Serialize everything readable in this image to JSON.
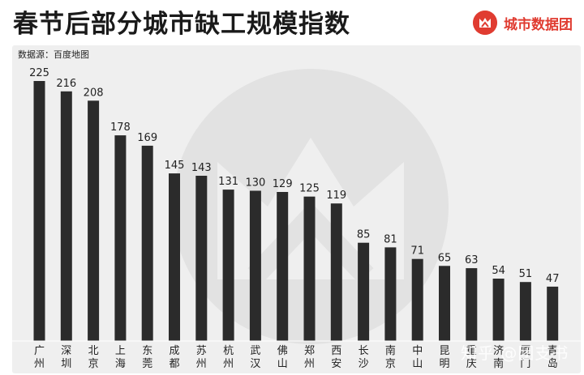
{
  "header": {
    "title": "春节后部分城市缺工规模指数",
    "brand": "城市数据团"
  },
  "source": "数据源：百度地图",
  "watermark": "知乎 @团支书",
  "colors": {
    "bar": "#2b2b2b",
    "panel": "#efefef",
    "brand": "#e03c31",
    "watermark": "#e2e2e2"
  },
  "chart_data": {
    "type": "bar",
    "title": "春节后部分城市缺工规模指数",
    "xlabel": "",
    "ylabel": "",
    "categories": [
      "广州",
      "深圳",
      "北京",
      "上海",
      "东莞",
      "成都",
      "苏州",
      "杭州",
      "武汉",
      "佛山",
      "郑州",
      "西安",
      "长沙",
      "南京",
      "中山",
      "昆明",
      "重庆",
      "济南",
      "厦门",
      "青岛"
    ],
    "values": [
      225,
      216,
      208,
      178,
      169,
      145,
      143,
      131,
      130,
      129,
      125,
      119,
      85,
      81,
      71,
      65,
      63,
      54,
      51,
      47
    ],
    "ylim": [
      0,
      230
    ],
    "grid": false,
    "legend": "none"
  }
}
